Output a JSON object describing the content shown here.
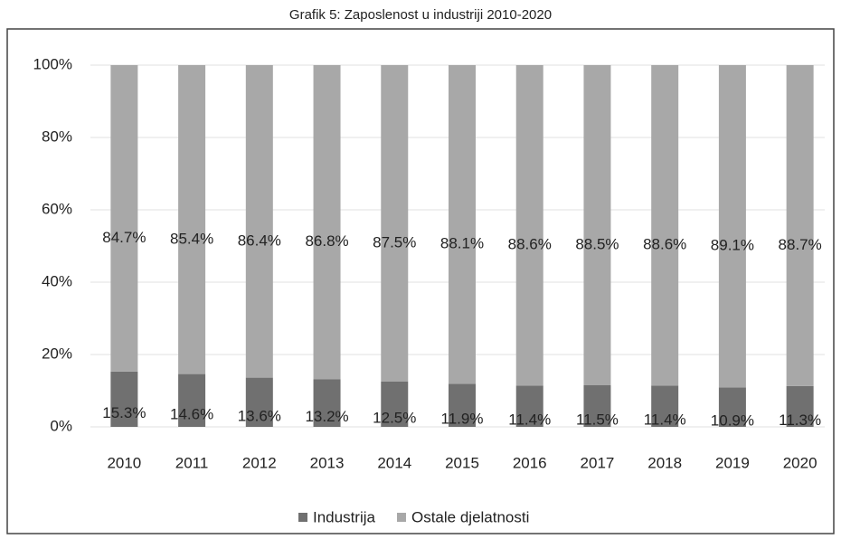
{
  "chart_data": {
    "type": "stacked_bar",
    "title": "Grafik 5: Zaposlenost u industriji 2010-2020",
    "categories": [
      "2010",
      "2011",
      "2012",
      "2013",
      "2014",
      "2015",
      "2016",
      "2017",
      "2018",
      "2019",
      "2020"
    ],
    "series": [
      {
        "name": "Industrija",
        "color": "#707070",
        "values": [
          15.3,
          14.6,
          13.6,
          13.2,
          12.5,
          11.9,
          11.4,
          11.5,
          11.4,
          10.9,
          11.3
        ],
        "value_labels": [
          "15.3%",
          "14.6%",
          "13.6%",
          "13.2%",
          "12.5%",
          "11.9%",
          "11.4%",
          "11.5%",
          "11.4%",
          "10.9%",
          "11.3%"
        ]
      },
      {
        "name": "Ostale djelatnosti",
        "color": "#a8a8a8",
        "values": [
          84.7,
          85.4,
          86.4,
          86.8,
          87.5,
          88.1,
          88.6,
          88.5,
          88.6,
          89.1,
          88.7
        ],
        "value_labels": [
          "84.7%",
          "85.4%",
          "86.4%",
          "86.8%",
          "87.5%",
          "88.1%",
          "88.6%",
          "88.5%",
          "88.6%",
          "89.1%",
          "88.7%"
        ]
      }
    ],
    "ylim": [
      0,
      100
    ],
    "yticks": [
      {
        "value": 0,
        "label": "0%"
      },
      {
        "value": 20,
        "label": "20%"
      },
      {
        "value": 40,
        "label": "40%"
      },
      {
        "value": 60,
        "label": "60%"
      },
      {
        "value": 80,
        "label": "80%"
      },
      {
        "value": 100,
        "label": "100%"
      }
    ],
    "grid": true,
    "legend": "bottom"
  }
}
